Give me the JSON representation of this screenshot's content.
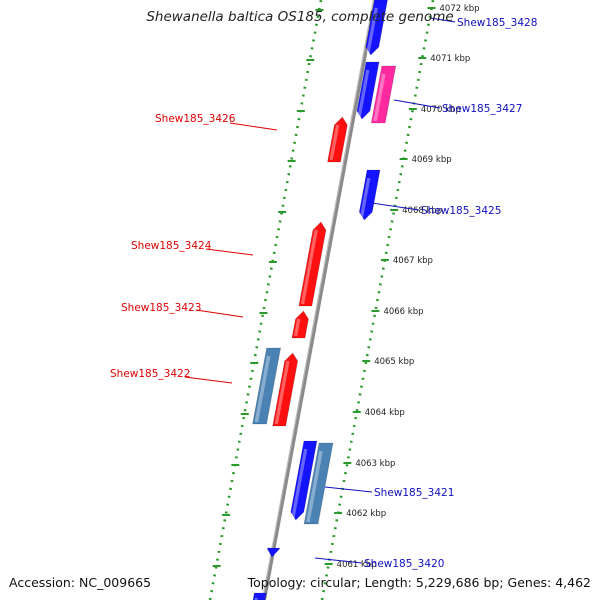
{
  "title": "Shewanella baltica OS185, complete genome",
  "accession": "Accession: NC_009665",
  "topology": "Topology: circular; Length: 5,229,686 bp; Genes: 4,462",
  "colors": {
    "label_left": "#e00000",
    "label_right": "#1010c0",
    "gene_red": "#ff1010",
    "gene_blue": "#1414ff",
    "gene_steel": "#4a82b4",
    "gene_magenta": "#ff2aa0",
    "backbone": "#8a8a8a",
    "ruler_dots": "#2a9a2a"
  },
  "ticks": [
    {
      "label": "4072 kbp"
    },
    {
      "label": "4071 kbp"
    },
    {
      "label": "4070 kbp"
    },
    {
      "label": "4069 kbp"
    },
    {
      "label": "4068 kbp"
    },
    {
      "label": "4067 kbp"
    },
    {
      "label": "4066 kbp"
    },
    {
      "label": "4065 kbp"
    },
    {
      "label": "4064 kbp"
    },
    {
      "label": "4063 kbp"
    },
    {
      "label": "4062 kbp"
    },
    {
      "label": "4061 kbp"
    }
  ],
  "gene_labels": [
    {
      "text": "Shew185_3428",
      "side": "right"
    },
    {
      "text": "Shew185_3427",
      "side": "right"
    },
    {
      "text": "Shew185_3426",
      "side": "left"
    },
    {
      "text": "Shew185_3425",
      "side": "right"
    },
    {
      "text": "Shew185_3424",
      "side": "left"
    },
    {
      "text": "Shew185_3423",
      "side": "left"
    },
    {
      "text": "Shew185_3422",
      "side": "left"
    },
    {
      "text": "Shew185_3421",
      "side": "right"
    },
    {
      "text": "Shew185_3420",
      "side": "right"
    }
  ]
}
